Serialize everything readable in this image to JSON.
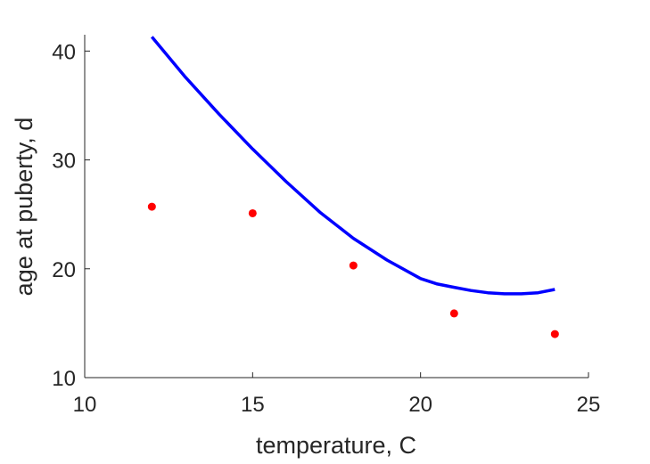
{
  "chart_data": {
    "type": "scatter",
    "xlabel": "temperature, C",
    "ylabel": "age at puberty, d",
    "xlim": [
      10,
      25
    ],
    "ylim": [
      10,
      41.5
    ],
    "xticks": [
      10,
      15,
      20,
      25
    ],
    "yticks": [
      10,
      20,
      30,
      40
    ],
    "grid": false,
    "series": [
      {
        "kind": "scatter",
        "color": "#ff0000",
        "points": [
          {
            "x": 12,
            "y": 25.7
          },
          {
            "x": 15,
            "y": 25.1
          },
          {
            "x": 18,
            "y": 20.3
          },
          {
            "x": 21,
            "y": 15.9
          },
          {
            "x": 24,
            "y": 14.0
          }
        ]
      },
      {
        "kind": "line",
        "color": "#0000ff",
        "points": [
          {
            "x": 12,
            "y": 41.3
          },
          {
            "x": 13,
            "y": 37.6
          },
          {
            "x": 14,
            "y": 34.2
          },
          {
            "x": 15,
            "y": 31.0
          },
          {
            "x": 16,
            "y": 28.0
          },
          {
            "x": 17,
            "y": 25.2
          },
          {
            "x": 18,
            "y": 22.8
          },
          {
            "x": 19,
            "y": 20.8
          },
          {
            "x": 20,
            "y": 19.1
          },
          {
            "x": 20.5,
            "y": 18.6
          },
          {
            "x": 21,
            "y": 18.3
          },
          {
            "x": 21.5,
            "y": 18.0
          },
          {
            "x": 22,
            "y": 17.8
          },
          {
            "x": 22.5,
            "y": 17.7
          },
          {
            "x": 23,
            "y": 17.7
          },
          {
            "x": 23.5,
            "y": 17.8
          },
          {
            "x": 24,
            "y": 18.1
          }
        ]
      }
    ]
  }
}
